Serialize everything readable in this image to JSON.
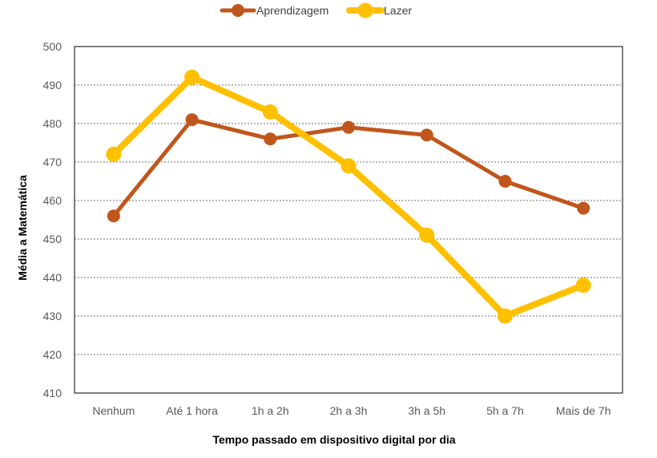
{
  "chart_data": {
    "type": "line",
    "categories": [
      "Nenhum",
      "Até 1 hora",
      "1h a 2h",
      "2h a 3h",
      "3h a 5h",
      "5h a 7h",
      "Mais de 7h"
    ],
    "series": [
      {
        "name": "Aprendizagem",
        "color": "#C0561C",
        "values": [
          456,
          481,
          476,
          479,
          477,
          465,
          458
        ]
      },
      {
        "name": "Lazer",
        "color": "#FFC000",
        "values": [
          472,
          492,
          483,
          469,
          451,
          430,
          438
        ]
      }
    ],
    "title": "",
    "xlabel": "Tempo passado em dispositivo digital por dia",
    "ylabel": "Média a Matemática",
    "ylim": [
      410,
      500
    ],
    "yticks": [
      410,
      420,
      430,
      440,
      450,
      460,
      470,
      480,
      490,
      500
    ],
    "grid": true,
    "legend_position": "top"
  }
}
